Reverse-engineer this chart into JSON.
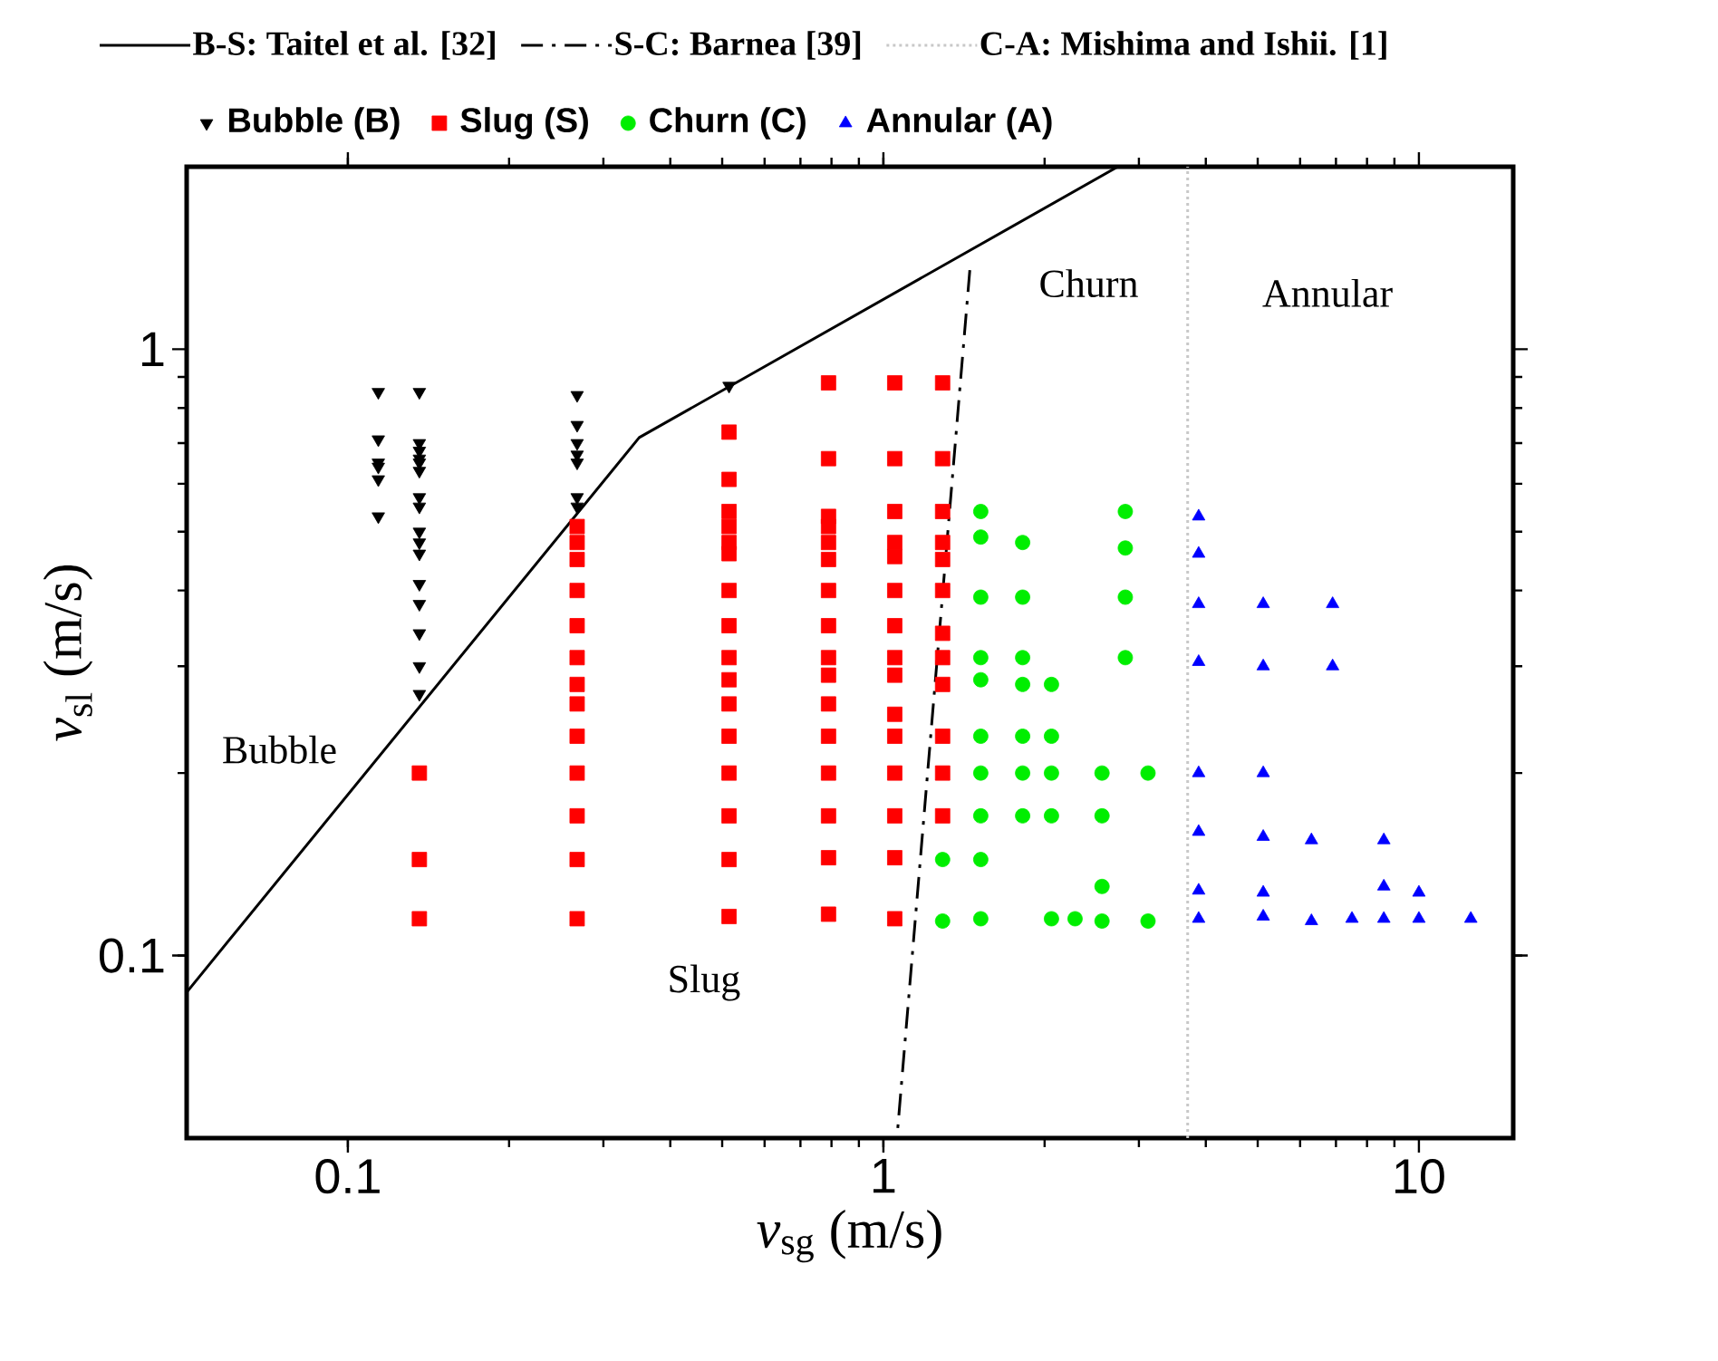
{
  "chart_data": {
    "type": "scatter",
    "xlabel": "*v*$_{sg}$ (m/s)",
    "ylabel": "*v*$_{sl}$ (m/s)",
    "log": "xy",
    "xlim": [
      0.05,
      15
    ],
    "ylim": [
      0.05,
      2
    ],
    "xticks": [
      0.1,
      1,
      10
    ],
    "yticks": [
      0.1,
      1
    ],
    "legend": "top",
    "grid": false,
    "series": [
      {
        "name": "B-S: Taitel et al. [32]",
        "type": "line",
        "line_style": "solid",
        "color": "#000000",
        "x": [
          0.05,
          0.35,
          2.74
        ],
        "values": [
          0.087,
          0.715,
          2.0
        ]
      },
      {
        "name": "S-C: Barnea [39]",
        "type": "line",
        "line_style": "dashed",
        "color": "#000000",
        "x": [
          1.45,
          1.06
        ],
        "values": [
          1.35,
          0.05
        ]
      },
      {
        "name": "C-A: Mishima and Ishii. [1]",
        "type": "line",
        "line_style": "dotted",
        "color": "#c8c8c8",
        "x": [
          3.7,
          3.7
        ],
        "values": [
          0.05,
          2.0
        ]
      },
      {
        "name": "Bubble (B)",
        "type": "scatter",
        "marker": "triangle-down",
        "color": "#000000",
        "x": [
          0.114,
          0.114,
          0.114,
          0.114,
          0.114,
          0.114,
          0.136,
          0.136,
          0.136,
          0.136,
          0.136,
          0.136,
          0.136,
          0.136,
          0.136,
          0.136,
          0.136,
          0.136,
          0.136,
          0.136,
          0.136,
          0.136,
          0.268,
          0.268,
          0.268,
          0.268,
          0.268,
          0.268,
          0.268,
          0.515
        ],
        "values": [
          0.85,
          0.71,
          0.65,
          0.64,
          0.61,
          0.53,
          0.85,
          0.7,
          0.68,
          0.66,
          0.65,
          0.63,
          0.57,
          0.55,
          0.5,
          0.48,
          0.46,
          0.41,
          0.38,
          0.34,
          0.3,
          0.27,
          0.84,
          0.75,
          0.7,
          0.67,
          0.65,
          0.57,
          0.55,
          0.87
        ]
      },
      {
        "name": "Slug (S)",
        "type": "scatter",
        "marker": "square",
        "color": "#ff0000",
        "x": [
          0.136,
          0.136,
          0.136,
          0.268,
          0.268,
          0.268,
          0.268,
          0.268,
          0.268,
          0.268,
          0.268,
          0.268,
          0.268,
          0.268,
          0.268,
          0.268,
          0.515,
          0.515,
          0.515,
          0.515,
          0.515,
          0.515,
          0.515,
          0.515,
          0.515,
          0.515,
          0.515,
          0.515,
          0.515,
          0.515,
          0.515,
          0.515,
          0.79,
          0.79,
          0.79,
          0.79,
          0.79,
          0.79,
          0.79,
          0.79,
          0.79,
          0.79,
          0.79,
          0.79,
          0.79,
          0.79,
          0.79,
          0.79,
          1.05,
          1.05,
          1.05,
          1.05,
          1.05,
          1.05,
          1.05,
          1.05,
          1.05,
          1.05,
          1.05,
          1.05,
          1.05,
          1.05,
          1.05,
          1.29,
          1.29,
          1.29,
          1.29,
          1.29,
          1.29,
          1.29,
          1.29,
          1.29,
          1.29,
          1.29,
          1.29
        ],
        "values": [
          0.2,
          0.144,
          0.115,
          0.51,
          0.48,
          0.45,
          0.4,
          0.35,
          0.31,
          0.28,
          0.26,
          0.23,
          0.2,
          0.17,
          0.144,
          0.115,
          0.73,
          0.61,
          0.54,
          0.51,
          0.48,
          0.46,
          0.4,
          0.35,
          0.31,
          0.285,
          0.26,
          0.23,
          0.2,
          0.17,
          0.144,
          0.116,
          0.88,
          0.66,
          0.53,
          0.51,
          0.48,
          0.45,
          0.4,
          0.35,
          0.31,
          0.29,
          0.26,
          0.23,
          0.2,
          0.17,
          0.145,
          0.117,
          0.88,
          0.66,
          0.54,
          0.48,
          0.455,
          0.4,
          0.35,
          0.31,
          0.29,
          0.25,
          0.23,
          0.2,
          0.17,
          0.145,
          0.115,
          0.88,
          0.66,
          0.54,
          0.48,
          0.45,
          0.4,
          0.34,
          0.31,
          0.28,
          0.23,
          0.2,
          0.17
        ]
      },
      {
        "name": "Churn (C)",
        "type": "scatter",
        "marker": "circle",
        "color": "#00ee00",
        "x": [
          1.52,
          1.52,
          1.52,
          1.52,
          1.52,
          1.52,
          1.52,
          1.52,
          1.52,
          1.52,
          1.29,
          1.29,
          1.82,
          1.82,
          1.82,
          1.82,
          1.82,
          1.82,
          1.82,
          2.06,
          2.06,
          2.06,
          2.06,
          2.06,
          2.28,
          2.56,
          2.56,
          2.56,
          2.56,
          2.83,
          2.83,
          2.83,
          2.83,
          3.12,
          3.12
        ],
        "values": [
          0.54,
          0.49,
          0.39,
          0.31,
          0.285,
          0.23,
          0.2,
          0.17,
          0.144,
          0.115,
          0.144,
          0.114,
          0.48,
          0.39,
          0.31,
          0.28,
          0.23,
          0.2,
          0.17,
          0.28,
          0.23,
          0.2,
          0.17,
          0.115,
          0.115,
          0.2,
          0.17,
          0.13,
          0.114,
          0.54,
          0.47,
          0.39,
          0.31,
          0.2,
          0.114
        ]
      },
      {
        "name": "Annular (A)",
        "type": "scatter",
        "marker": "triangle",
        "color": "#0000ff",
        "x": [
          3.88,
          3.88,
          3.88,
          3.88,
          3.88,
          3.88,
          3.88,
          3.88,
          5.12,
          5.12,
          5.12,
          5.12,
          5.12,
          5.12,
          6.3,
          6.3,
          6.9,
          6.9,
          7.5,
          8.6,
          8.6,
          8.6,
          10.0,
          10.0,
          12.5
        ],
        "values": [
          0.53,
          0.46,
          0.38,
          0.305,
          0.2,
          0.16,
          0.128,
          0.115,
          0.38,
          0.3,
          0.2,
          0.157,
          0.127,
          0.116,
          0.155,
          0.114,
          0.38,
          0.3,
          0.115,
          0.155,
          0.13,
          0.115,
          0.127,
          0.115,
          0.115
        ]
      }
    ],
    "annotations": [
      "Bubble",
      "Slug",
      "Churn",
      "Annular"
    ]
  }
}
